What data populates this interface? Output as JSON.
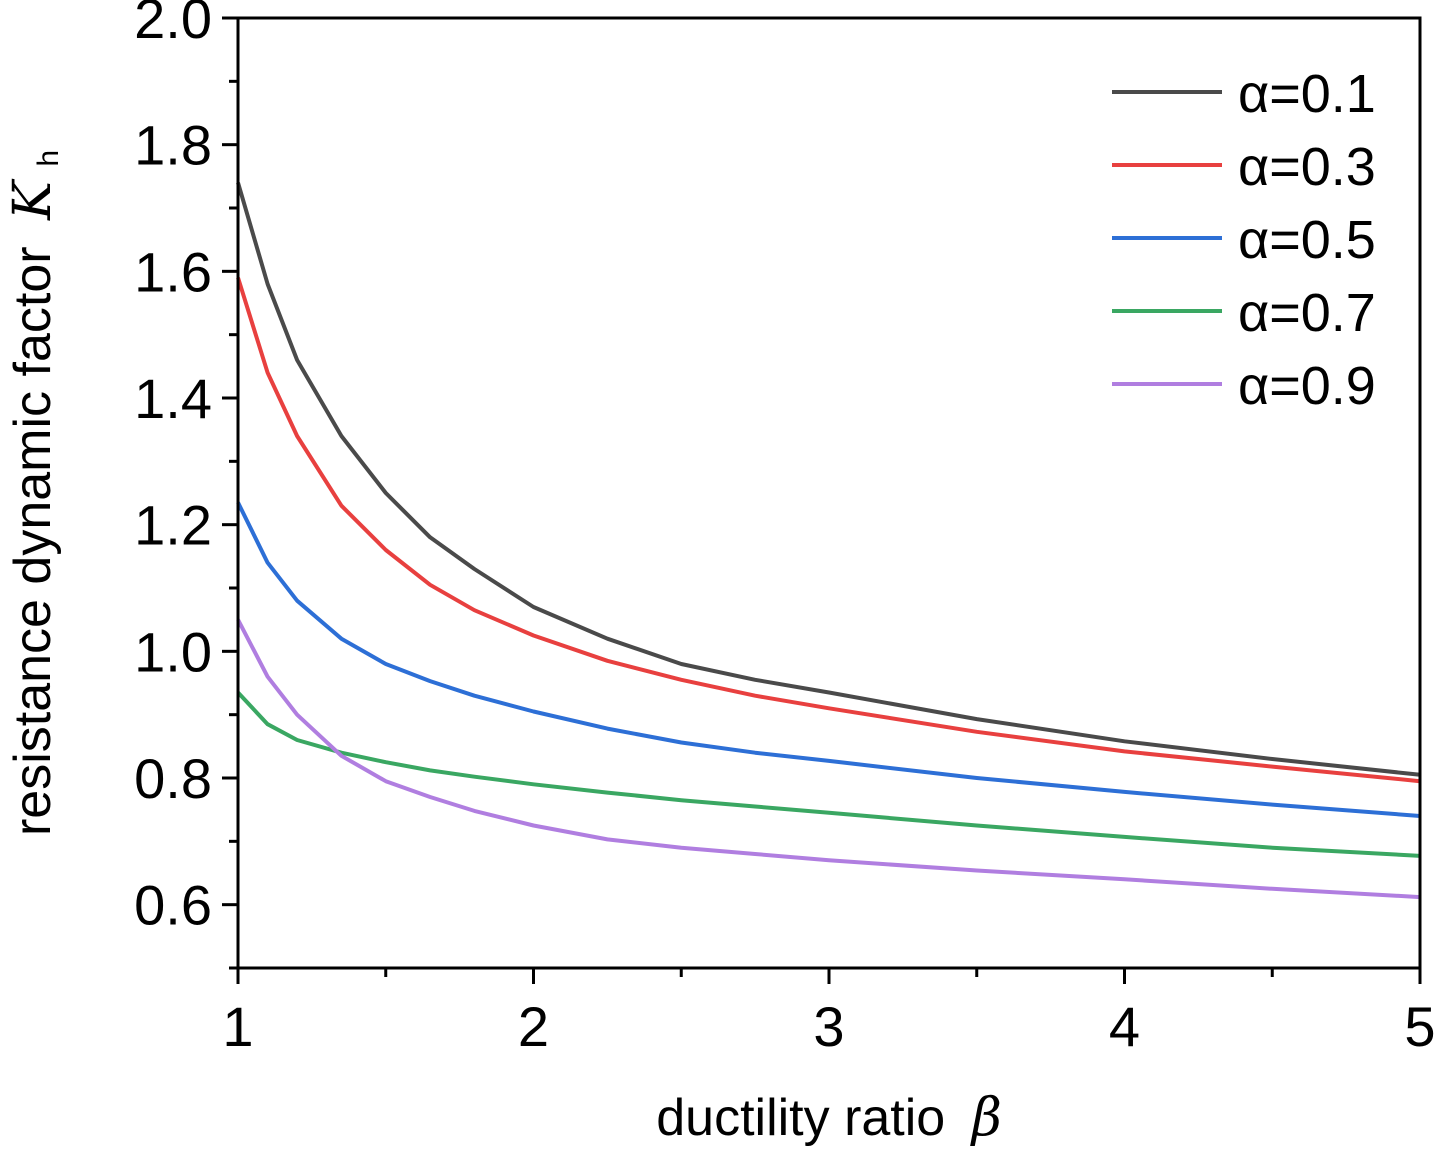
{
  "chart_data": {
    "type": "line",
    "xlabel": "ductility ratio",
    "xlabel_symbol": "β",
    "ylabel": "resistance dynamic factor",
    "ylabel_symbol": "K",
    "ylabel_subscript": "h",
    "xlim": [
      1,
      5
    ],
    "ylim": [
      0.5,
      2.0
    ],
    "x_ticks": [
      1,
      2,
      3,
      4,
      5
    ],
    "x_tick_labels": [
      "1",
      "2",
      "3",
      "4",
      "5"
    ],
    "y_ticks": [
      0.6,
      0.8,
      1.0,
      1.2,
      1.4,
      1.6,
      1.8,
      2.0
    ],
    "y_tick_labels": [
      "0.6",
      "0.8",
      "1.0",
      "1.2",
      "1.4",
      "1.6",
      "1.8",
      "2.0"
    ],
    "grid": false,
    "legend_position": "top-right",
    "x": [
      1.0,
      1.1,
      1.2,
      1.35,
      1.5,
      1.65,
      1.8,
      2.0,
      2.25,
      2.5,
      2.75,
      3.0,
      3.5,
      4.0,
      4.5,
      5.0
    ],
    "series": [
      {
        "name": "α=0.1",
        "color": "#4a4a4a",
        "values": [
          1.74,
          1.58,
          1.46,
          1.34,
          1.25,
          1.18,
          1.13,
          1.07,
          1.02,
          0.98,
          0.955,
          0.935,
          0.893,
          0.858,
          0.83,
          0.805
        ]
      },
      {
        "name": "α=0.3",
        "color": "#e8403f",
        "values": [
          1.59,
          1.44,
          1.34,
          1.23,
          1.16,
          1.105,
          1.065,
          1.025,
          0.985,
          0.955,
          0.93,
          0.91,
          0.873,
          0.842,
          0.818,
          0.795
        ]
      },
      {
        "name": "α=0.5",
        "color": "#2d6fd6",
        "values": [
          1.235,
          1.14,
          1.08,
          1.02,
          0.98,
          0.953,
          0.93,
          0.905,
          0.878,
          0.856,
          0.84,
          0.827,
          0.8,
          0.778,
          0.758,
          0.74
        ]
      },
      {
        "name": "α=0.7",
        "color": "#3aa762",
        "values": [
          0.935,
          0.885,
          0.86,
          0.84,
          0.825,
          0.812,
          0.802,
          0.79,
          0.777,
          0.765,
          0.755,
          0.745,
          0.725,
          0.707,
          0.69,
          0.677
        ]
      },
      {
        "name": "α=0.9",
        "color": "#b07ee0",
        "values": [
          1.05,
          0.96,
          0.9,
          0.835,
          0.795,
          0.77,
          0.748,
          0.725,
          0.703,
          0.69,
          0.68,
          0.67,
          0.654,
          0.64,
          0.625,
          0.612
        ]
      }
    ]
  }
}
